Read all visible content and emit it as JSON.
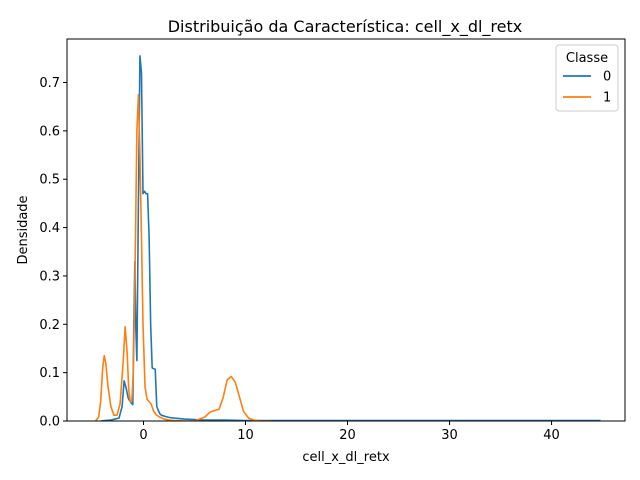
{
  "chart_data": {
    "type": "line",
    "title": "Distribuição da Característica: cell_x_dl_retx",
    "xlabel": "cell_x_dl_retx",
    "ylabel": "Densidade",
    "xlim": [
      -7.5,
      47.2
    ],
    "ylim": [
      0,
      0.79
    ],
    "xticks": [
      0,
      10,
      20,
      30,
      40
    ],
    "xtick_labels": [
      "0",
      "10",
      "20",
      "30",
      "40"
    ],
    "yticks": [
      0.0,
      0.1,
      0.2,
      0.3,
      0.4,
      0.5,
      0.6,
      0.7
    ],
    "ytick_labels": [
      "0.0",
      "0.1",
      "0.2",
      "0.3",
      "0.4",
      "0.5",
      "0.6",
      "0.7"
    ],
    "grid": false,
    "legend": {
      "title": "Classe",
      "placement": "top-right"
    },
    "series": [
      {
        "name": "0",
        "color": "#1f77b4",
        "x": [
          -4.2,
          -3.8,
          -3.2,
          -2.8,
          -2.4,
          -2.1,
          -1.9,
          -1.7,
          -1.5,
          -1.3,
          -1.15,
          -1.05,
          -0.95,
          -0.85,
          -0.75,
          -0.65,
          -0.5,
          -0.35,
          -0.2,
          -0.05,
          0.1,
          0.25,
          0.4,
          0.55,
          0.7,
          0.85,
          1.0,
          1.15,
          1.3,
          1.45,
          1.6,
          1.75,
          1.9,
          2.2,
          2.6,
          3.0,
          3.5,
          4.0,
          5.0,
          6.0,
          8.0,
          10.0,
          20.0,
          30.0,
          40.0,
          44.8
        ],
        "y": [
          0.0,
          0.001,
          0.002,
          0.004,
          0.006,
          0.03,
          0.083,
          0.068,
          0.047,
          0.04,
          0.036,
          0.034,
          0.2,
          0.33,
          0.19,
          0.125,
          0.45,
          0.755,
          0.72,
          0.47,
          0.475,
          0.47,
          0.47,
          0.38,
          0.2,
          0.11,
          0.108,
          0.107,
          0.03,
          0.022,
          0.015,
          0.012,
          0.011,
          0.009,
          0.007,
          0.006,
          0.005,
          0.004,
          0.003,
          0.002,
          0.002,
          0.001,
          0.001,
          0.001,
          0.001,
          0.001
        ]
      },
      {
        "name": "1",
        "color": "#ff7f0e",
        "x": [
          -4.7,
          -4.4,
          -4.2,
          -4.0,
          -3.85,
          -3.7,
          -3.5,
          -3.2,
          -2.9,
          -2.6,
          -2.3,
          -2.0,
          -1.8,
          -1.6,
          -1.45,
          -1.3,
          -1.15,
          -1.0,
          -0.85,
          -0.65,
          -0.5,
          -0.35,
          -0.2,
          -0.05,
          0.15,
          0.35,
          0.55,
          0.75,
          1.0,
          1.3,
          1.6,
          2.0,
          2.5,
          3.0,
          4.0,
          5.0,
          6.0,
          6.5,
          7.0,
          7.4,
          7.8,
          8.2,
          8.6,
          9.0,
          9.4,
          9.8,
          10.3,
          10.8,
          11.5,
          12.5
        ],
        "y": [
          0.0,
          0.008,
          0.04,
          0.11,
          0.135,
          0.12,
          0.075,
          0.03,
          0.012,
          0.012,
          0.035,
          0.12,
          0.195,
          0.14,
          0.065,
          0.04,
          0.042,
          0.1,
          0.28,
          0.6,
          0.675,
          0.55,
          0.38,
          0.2,
          0.07,
          0.045,
          0.04,
          0.035,
          0.02,
          0.012,
          0.008,
          0.004,
          0.002,
          0.001,
          0.0,
          0.0,
          0.008,
          0.018,
          0.022,
          0.024,
          0.048,
          0.085,
          0.092,
          0.08,
          0.05,
          0.02,
          0.006,
          0.002,
          0.0,
          0.0
        ]
      }
    ]
  }
}
